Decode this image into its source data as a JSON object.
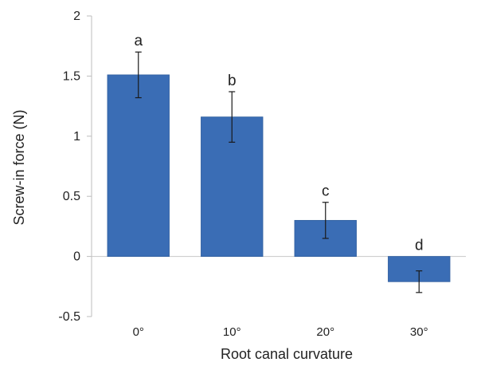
{
  "chart_data": {
    "type": "bar",
    "title": "",
    "xlabel": "Root canal curvature",
    "ylabel": "Screw-in force (N)",
    "categories": [
      "0°",
      "10°",
      "20°",
      "30°"
    ],
    "values": [
      1.51,
      1.16,
      0.3,
      -0.21
    ],
    "errors": [
      0.19,
      0.21,
      0.15,
      0.09
    ],
    "letters": [
      "a",
      "b",
      "c",
      "d"
    ],
    "ylim": [
      -0.5,
      2
    ],
    "yticks": [
      -0.5,
      0,
      0.5,
      1,
      1.5,
      2
    ],
    "ytick_labels": [
      "-0.5",
      "0",
      "0.5",
      "1",
      "1.5",
      "2"
    ],
    "bar_color": "#3a6db5",
    "grid": false,
    "legend": "none"
  }
}
